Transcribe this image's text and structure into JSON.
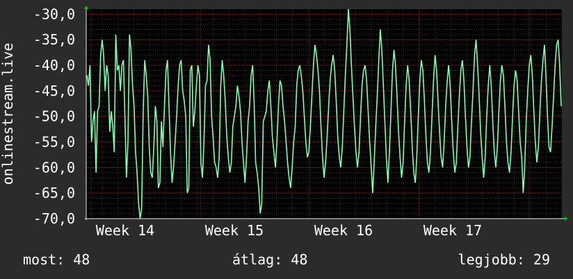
{
  "chart_data": {
    "type": "line",
    "ylabel": "onlinestream.live",
    "ylim": [
      -70,
      -29
    ],
    "y_ticks": [
      "-30,0",
      "-35,0",
      "-40,0",
      "-45,0",
      "-50,0",
      "-55,0",
      "-60,0",
      "-65,0",
      "-70,0"
    ],
    "y_tick_values": [
      -30,
      -35,
      -40,
      -45,
      -50,
      -55,
      -60,
      -65,
      -70
    ],
    "x_tick_labels": [
      "Week 14",
      "Week 15",
      "Week 16",
      "Week 17"
    ],
    "grid": true,
    "colors": {
      "background": "#2b2b2b",
      "plot_bg": "#000000",
      "line": "#7fffb0",
      "grid": "#6a2020",
      "axis_arrow": "#00c000"
    },
    "series": [
      {
        "values": [
          -42,
          -44,
          -40,
          -55,
          -51,
          -49,
          -61,
          -49,
          -48,
          -38,
          -35,
          -38,
          -45,
          -40,
          -42,
          -53,
          -49,
          -52,
          -57,
          -34,
          -41,
          -40,
          -45,
          -40,
          -39,
          -50,
          -62,
          -55,
          -34,
          -37,
          -44,
          -48,
          -57,
          -61,
          -67,
          -70,
          -68,
          -49,
          -39,
          -42,
          -46,
          -56,
          -61,
          -62,
          -56,
          -48,
          -51,
          -64,
          -63,
          -51,
          -56,
          -48,
          -41,
          -39,
          -48,
          -57,
          -63,
          -60,
          -55,
          -50,
          -44,
          -40,
          -39,
          -45,
          -47,
          -50,
          -65,
          -64,
          -41,
          -40,
          -52,
          -49,
          -44,
          -40,
          -42,
          -59,
          -62,
          -55,
          -44,
          -43,
          -36,
          -39,
          -50,
          -54,
          -59,
          -60,
          -62,
          -58,
          -44,
          -39,
          -42,
          -47,
          -54,
          -58,
          -61,
          -59,
          -52,
          -50,
          -48,
          -44,
          -46,
          -49,
          -55,
          -59,
          -63,
          -58,
          -51,
          -48,
          -42,
          -40,
          -47,
          -59,
          -61,
          -64,
          -69,
          -67,
          -51,
          -50,
          -49,
          -45,
          -43,
          -48,
          -54,
          -57,
          -60,
          -55,
          -48,
          -43,
          -44,
          -48,
          -51,
          -55,
          -59,
          -62,
          -64,
          -60,
          -55,
          -52,
          -44,
          -41,
          -40,
          -42,
          -45,
          -50,
          -55,
          -58,
          -57,
          -52,
          -46,
          -40,
          -36,
          -38,
          -41,
          -45,
          -52,
          -58,
          -62,
          -59,
          -54,
          -48,
          -43,
          -40,
          -38,
          -41,
          -47,
          -54,
          -58,
          -60,
          -56,
          -49,
          -42,
          -36,
          -29,
          -33,
          -40,
          -46,
          -52,
          -57,
          -60,
          -57,
          -50,
          -44,
          -41,
          -40,
          -43,
          -49,
          -55,
          -60,
          -65,
          -59,
          -52,
          -46,
          -39,
          -33,
          -37,
          -44,
          -51,
          -58,
          -63,
          -57,
          -49,
          -41,
          -37,
          -40,
          -46,
          -53,
          -58,
          -62,
          -59,
          -51,
          -44,
          -40,
          -43,
          -49,
          -56,
          -61,
          -63,
          -58,
          -50,
          -43,
          -39,
          -41,
          -47,
          -54,
          -59,
          -61,
          -57,
          -50,
          -43,
          -38,
          -41,
          -47,
          -53,
          -58,
          -60,
          -55,
          -48,
          -43,
          -40,
          -44,
          -51,
          -57,
          -61,
          -59,
          -52,
          -46,
          -41,
          -39,
          -43,
          -50,
          -56,
          -60,
          -58,
          -51,
          -45,
          -38,
          -35,
          -40,
          -46,
          -53,
          -58,
          -62,
          -58,
          -50,
          -44,
          -40,
          -44,
          -51,
          -57,
          -60,
          -56,
          -49,
          -43,
          -40,
          -42,
          -48,
          -55,
          -59,
          -61,
          -57,
          -50,
          -44,
          -41,
          -43,
          -49,
          -55,
          -58,
          -65,
          -60,
          -51,
          -45,
          -40,
          -38,
          -42,
          -49,
          -55,
          -59,
          -56,
          -49,
          -43,
          -39,
          -36,
          -42,
          -50,
          -56,
          -57,
          -52,
          -46,
          -40,
          -36,
          -35,
          -40,
          -48
        ]
      }
    ]
  },
  "footer": {
    "now": "most: 48",
    "avg": "átlag: 48",
    "best": "legjobb: 29"
  }
}
